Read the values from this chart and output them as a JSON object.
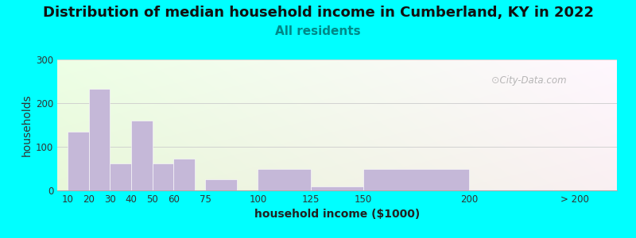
{
  "title": "Distribution of median household income in Cumberland, KY in 2022",
  "subtitle": "All residents",
  "xlabel": "household income ($1000)",
  "ylabel": "households",
  "title_fontsize": 13,
  "subtitle_fontsize": 11,
  "axis_label_fontsize": 10,
  "background_color": "#00FFFF",
  "bar_color": "#c5b8d8",
  "bar_positions": [
    10,
    20,
    30,
    40,
    50,
    60,
    75,
    100,
    125,
    150,
    200
  ],
  "bar_heights": [
    135,
    232,
    62,
    160,
    62,
    73,
    25,
    50,
    10,
    50,
    2
  ],
  "bar_widths": [
    10,
    10,
    10,
    10,
    10,
    10,
    15,
    25,
    25,
    50,
    40
  ],
  "tick_labels": [
    "10",
    "20",
    "30",
    "40",
    "50",
    "60",
    "75",
    "100",
    "125",
    "150",
    "200",
    "> 200"
  ],
  "tick_positions": [
    10,
    20,
    30,
    40,
    50,
    60,
    75,
    100,
    125,
    150,
    200,
    250
  ],
  "ylim": [
    0,
    300
  ],
  "yticks": [
    0,
    100,
    200,
    300
  ],
  "watermark": "City-Data.com",
  "grid_color": "#cccccc",
  "subtitle_color": "#008888",
  "title_color": "#111111"
}
